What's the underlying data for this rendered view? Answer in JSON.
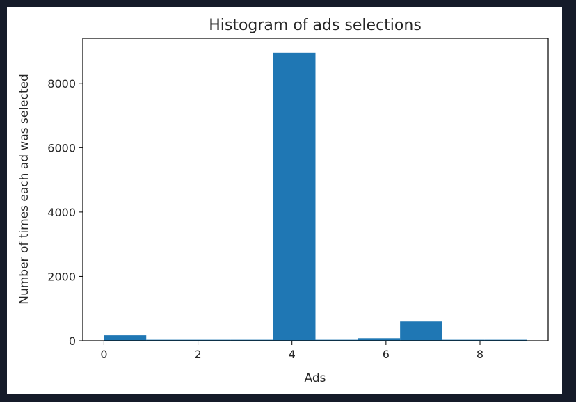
{
  "chart_data": {
    "type": "bar",
    "title": "Histogram of ads selections",
    "xlabel": "Ads",
    "ylabel": "Number of times each ad was selected",
    "bar_color": "#1f77b4",
    "xlim": [
      -0.45,
      9.45
    ],
    "ylim": [
      0,
      9400
    ],
    "xticks": [
      0,
      2,
      4,
      6,
      8
    ],
    "yticks": [
      0,
      2000,
      4000,
      6000,
      8000
    ],
    "bins": [
      {
        "x0": 0.0,
        "x1": 0.9,
        "value": 170
      },
      {
        "x0": 0.9,
        "x1": 1.8,
        "value": 30
      },
      {
        "x0": 1.8,
        "x1": 2.7,
        "value": 30
      },
      {
        "x0": 2.7,
        "x1": 3.6,
        "value": 30
      },
      {
        "x0": 3.6,
        "x1": 4.5,
        "value": 8950
      },
      {
        "x0": 4.5,
        "x1": 5.4,
        "value": 30
      },
      {
        "x0": 5.4,
        "x1": 6.3,
        "value": 80
      },
      {
        "x0": 6.3,
        "x1": 7.2,
        "value": 600
      },
      {
        "x0": 7.2,
        "x1": 8.1,
        "value": 30
      },
      {
        "x0": 8.1,
        "x1": 9.0,
        "value": 30
      }
    ],
    "grid": false,
    "legend": false
  }
}
